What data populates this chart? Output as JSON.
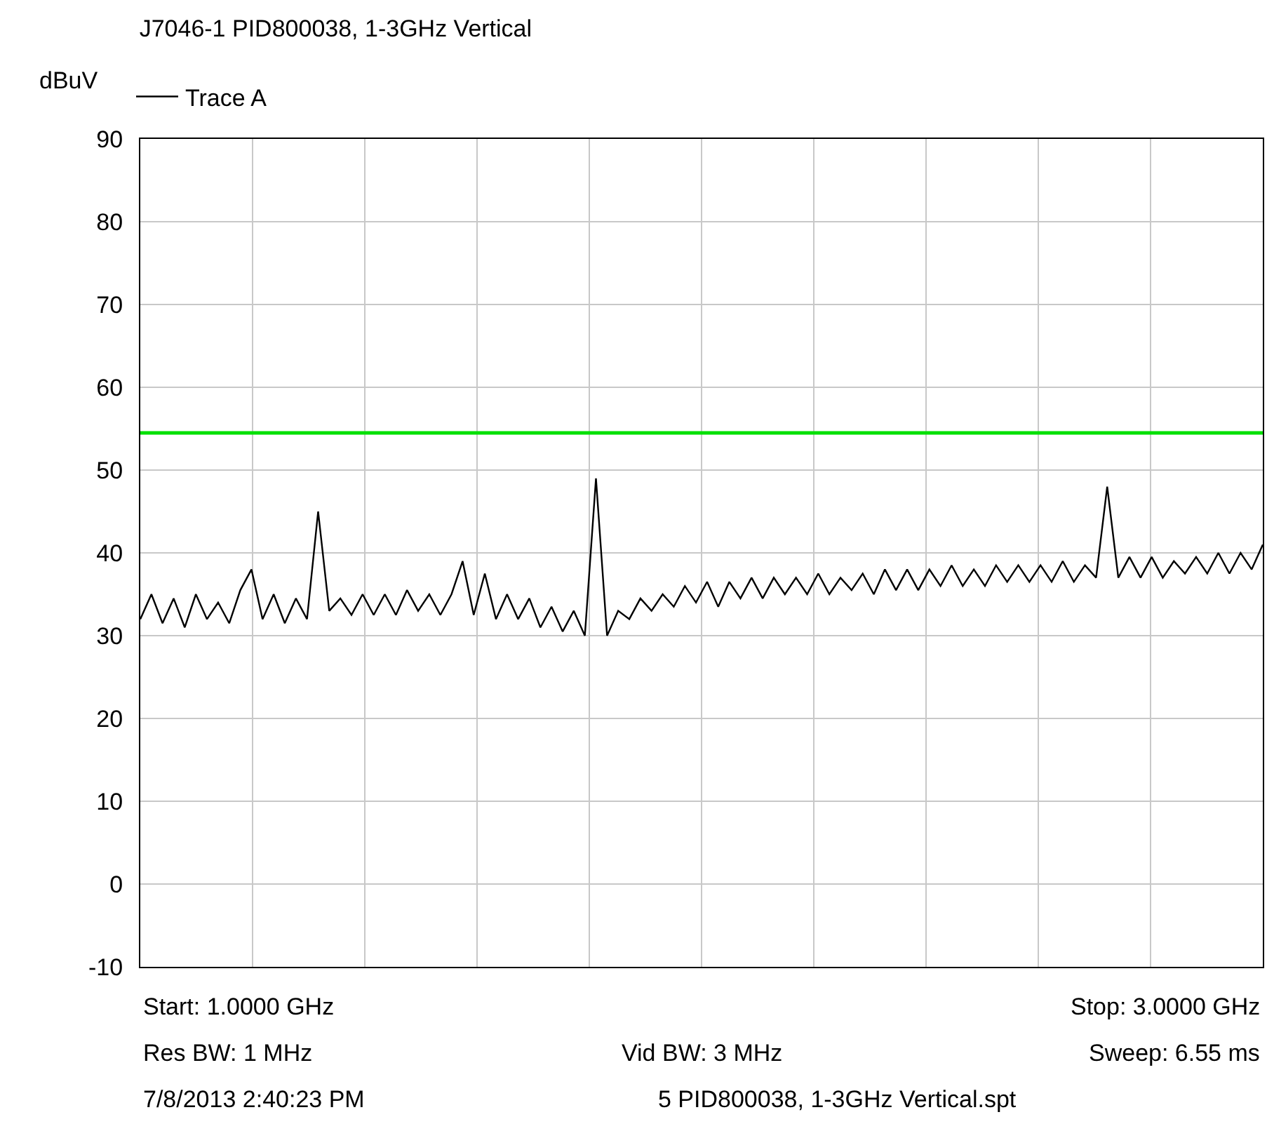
{
  "chart_data": {
    "type": "line",
    "title": "J7046-1 PID800038, 1-3GHz Vertical",
    "ylabel": "dBuV",
    "categories": [
      null,
      null,
      null,
      null,
      null,
      null,
      null,
      null,
      null,
      null,
      null,
      null,
      null,
      null,
      null,
      null,
      null,
      null,
      null,
      null,
      null,
      null,
      null,
      null,
      null,
      null,
      null,
      null,
      null,
      null,
      null,
      null,
      null,
      null,
      null,
      null,
      null,
      null,
      null,
      null,
      null,
      null,
      null,
      null,
      null,
      null,
      null,
      null,
      null,
      null,
      null,
      null,
      null,
      null,
      null,
      null,
      null,
      null,
      null,
      null,
      null,
      null,
      null,
      null,
      null,
      null,
      null,
      null,
      null,
      null,
      null,
      null,
      null,
      null,
      null,
      null,
      null,
      null,
      null,
      null,
      null,
      null,
      null,
      null,
      null,
      null,
      null,
      null,
      null,
      null,
      null,
      null,
      null,
      null,
      null,
      null,
      null,
      null,
      null,
      null,
      null,
      null
    ],
    "ylim": [
      -10,
      90
    ],
    "yticks": [
      -10,
      0,
      10,
      20,
      30,
      40,
      50,
      60,
      70,
      80,
      90
    ],
    "tick_labels": "y",
    "grid": true,
    "legend": "top left",
    "marker": "none",
    "line_style": "solid",
    "series": [
      {
        "name": "Trace A",
        "color": "#000000",
        "values": [
          32,
          35,
          31.5,
          34.5,
          31,
          35,
          32,
          34,
          31.5,
          35.5,
          38,
          32,
          35,
          31.5,
          34.5,
          32,
          45,
          33,
          34.5,
          32.5,
          35,
          32.5,
          35,
          32.5,
          35.5,
          33,
          35,
          32.5,
          35,
          39,
          32.5,
          37.5,
          32,
          35,
          32,
          34.5,
          31,
          33.5,
          30.5,
          33,
          30,
          49,
          30,
          33,
          32,
          34.5,
          33,
          35,
          33.5,
          36,
          34,
          36.5,
          33.5,
          36.5,
          34.5,
          37,
          34.5,
          37,
          35,
          37,
          35,
          37.5,
          35,
          37,
          35.5,
          37.5,
          35,
          38,
          35.5,
          38,
          35.5,
          38,
          36,
          38.5,
          36,
          38,
          36,
          38.5,
          36.5,
          38.5,
          36.5,
          38.5,
          36.5,
          39,
          36.5,
          38.5,
          37,
          48,
          37,
          39.5,
          37,
          39.5,
          37,
          39,
          37.5,
          39.5,
          37.5,
          40,
          37.5,
          40,
          38,
          41
        ]
      }
    ],
    "ref_lines": [
      {
        "axis": "y",
        "value": 54.5,
        "color": "#00e000"
      }
    ],
    "annotations": [
      "Start: 1.0000 GHz",
      "Stop: 3.0000 GHz",
      "Res BW: 1 MHz",
      "Vid BW: 3 MHz",
      "Sweep: 6.55 ms",
      "7/8/2013 2:40:23 PM",
      "5 PID800038, 1-3GHz Vertical.spt"
    ]
  }
}
